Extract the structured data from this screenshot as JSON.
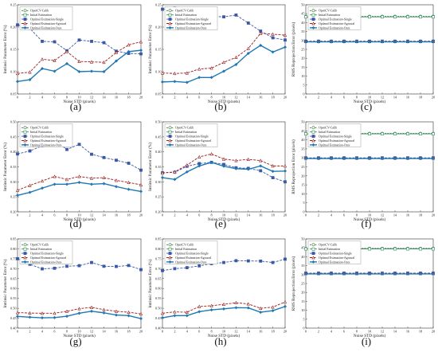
{
  "legend_entries": [
    "OpenCV-Calib",
    "Initial Estimation",
    "Optimal Estimation-Single",
    "Optimal Estimation-Agrawal",
    "Optimal Estimation-Ours"
  ],
  "series_colors": {
    "OpenCV-Calib": "#3a7d3a",
    "Initial Estimation": "#2e8b57",
    "Optimal Estimation-Single": "#3a58a8",
    "Optimal Estimation-Agrawal": "#9b1c1c",
    "Optimal Estimation-Ours": "#1f78b4"
  },
  "chart_data": [
    {
      "panel": "(a)",
      "type": "line",
      "xlabel": "Noise STD (pixels)",
      "ylabel": "Intrinsic Parameter Error (%)",
      "x": [
        0,
        2,
        4,
        6,
        8,
        10,
        12,
        14,
        16,
        18,
        20
      ],
      "ylim": [
        0.05,
        0.25
      ],
      "yticks": [
        0.05,
        0.1,
        0.15,
        0.2,
        0.25
      ],
      "yticklabels": [
        "0.05",
        "0.10",
        "0.15",
        "0.20",
        "0.25"
      ],
      "series": [
        {
          "name": "Optimal Estimation-Single",
          "values": [
            0.205,
            0.197,
            0.168,
            0.167,
            0.147,
            0.171,
            0.168,
            0.165,
            0.146,
            0.141,
            0.14
          ]
        },
        {
          "name": "Optimal Estimation-Agrawal",
          "values": [
            0.096,
            0.099,
            0.128,
            0.125,
            0.145,
            0.123,
            0.122,
            0.121,
            0.143,
            0.16,
            0.167
          ]
        },
        {
          "name": "Optimal Estimation-Ours",
          "values": [
            0.078,
            0.082,
            0.107,
            0.101,
            0.118,
            0.1,
            0.101,
            0.1,
            0.124,
            0.145,
            0.148
          ]
        }
      ]
    },
    {
      "panel": "(b)",
      "type": "line",
      "xlabel": "Noise STD (pixels)",
      "ylabel": "Intrinsic Parameter Error (%)",
      "x": [
        0,
        2,
        4,
        6,
        8,
        10,
        12,
        14,
        16,
        18,
        20
      ],
      "ylim": [
        0.05,
        0.25
      ],
      "yticks": [
        0.05,
        0.1,
        0.15,
        0.2,
        0.25
      ],
      "yticklabels": [
        "0.05",
        "0.10",
        "0.15",
        "0.20",
        "0.25"
      ],
      "series": [
        {
          "name": "Optimal Estimation-Single",
          "values": [
            0.24,
            0.243,
            0.236,
            0.229,
            0.224,
            0.223,
            0.227,
            0.209,
            0.191,
            0.176,
            0.171
          ]
        },
        {
          "name": "Optimal Estimation-Agrawal",
          "values": [
            0.097,
            0.096,
            0.097,
            0.106,
            0.108,
            0.121,
            0.132,
            0.152,
            0.186,
            0.184,
            0.182
          ]
        },
        {
          "name": "Optimal Estimation-Ours",
          "values": [
            0.077,
            0.078,
            0.076,
            0.087,
            0.087,
            0.101,
            0.116,
            0.141,
            0.159,
            0.144,
            0.155
          ]
        }
      ]
    },
    {
      "panel": "(c)",
      "type": "line",
      "xlabel": "Noise STD (pixels)",
      "ylabel": "RMS Reprojection Error (pixels)",
      "x": [
        0,
        2,
        4,
        6,
        8,
        10,
        12,
        14,
        16,
        18,
        20
      ],
      "ylim": [
        0,
        50
      ],
      "yticks": [
        0,
        5,
        10,
        15,
        20,
        25,
        30,
        35,
        40,
        45,
        50
      ],
      "yticklabels": [
        "0",
        "5",
        "10",
        "15",
        "20",
        "25",
        "30",
        "35",
        "40",
        "45",
        "50"
      ],
      "series": [
        {
          "name": "OpenCV-Calib",
          "values": [
            43.5,
            43.5,
            43.5,
            43.5,
            43.5,
            43.5,
            43.5,
            43.5,
            43.5,
            43.5,
            43.5
          ]
        },
        {
          "name": "Initial Estimation",
          "values": [
            43.2,
            43.2,
            43.2,
            43.2,
            43.2,
            43.2,
            43.2,
            43.2,
            43.2,
            43.2,
            43.2
          ]
        },
        {
          "name": "Optimal Estimation-Single",
          "values": [
            29.6,
            29.6,
            29.6,
            29.6,
            29.6,
            29.6,
            29.6,
            29.6,
            29.6,
            29.6,
            29.6
          ]
        },
        {
          "name": "Optimal Estimation-Agrawal",
          "values": [
            29.4,
            29.4,
            29.4,
            29.4,
            29.4,
            29.4,
            29.4,
            29.4,
            29.4,
            29.4,
            29.4
          ]
        },
        {
          "name": "Optimal Estimation-Ours",
          "values": [
            29.2,
            29.2,
            29.2,
            29.2,
            29.2,
            29.2,
            29.2,
            29.2,
            29.2,
            29.2,
            29.2
          ]
        }
      ]
    },
    {
      "panel": "(d)",
      "type": "line",
      "xlabel": "Noise STD (pixels)",
      "ylabel": "Intrinsic Parameter Error (%)",
      "x": [
        0,
        2,
        4,
        6,
        8,
        10,
        12,
        14,
        16,
        18,
        20
      ],
      "ylim": [
        0.2,
        0.5
      ],
      "yticks": [
        0.2,
        0.25,
        0.3,
        0.35,
        0.4,
        0.45,
        0.5
      ],
      "yticklabels": [
        "0.20",
        "0.25",
        "0.30",
        "0.35",
        "0.40",
        "0.45",
        "0.50"
      ],
      "series": [
        {
          "name": "Optimal Estimation-Single",
          "values": [
            0.393,
            0.403,
            0.42,
            0.438,
            0.408,
            0.425,
            0.392,
            0.381,
            0.372,
            0.362,
            0.339
          ]
        },
        {
          "name": "Optimal Estimation-Agrawal",
          "values": [
            0.272,
            0.288,
            0.303,
            0.318,
            0.308,
            0.318,
            0.312,
            0.314,
            0.305,
            0.298,
            0.29
          ]
        },
        {
          "name": "Optimal Estimation-Ours",
          "values": [
            0.255,
            0.265,
            0.279,
            0.292,
            0.292,
            0.298,
            0.292,
            0.294,
            0.284,
            0.275,
            0.268
          ]
        }
      ]
    },
    {
      "panel": "(e)",
      "type": "line",
      "xlabel": "Noise STD (pixels)",
      "ylabel": "Intrinsic Parameter Error (%)",
      "x": [
        0,
        2,
        4,
        6,
        8,
        10,
        12,
        14,
        16,
        18,
        20
      ],
      "ylim": [
        0.2,
        0.5
      ],
      "yticks": [
        0.2,
        0.25,
        0.3,
        0.35,
        0.4,
        0.45,
        0.5
      ],
      "yticklabels": [
        "0.20",
        "0.25",
        "0.30",
        "0.35",
        "0.40",
        "0.45",
        "0.50"
      ],
      "series": [
        {
          "name": "Optimal Estimation-Single",
          "values": [
            0.33,
            0.332,
            0.352,
            0.361,
            0.365,
            0.358,
            0.347,
            0.345,
            0.337,
            0.314,
            0.3
          ]
        },
        {
          "name": "Optimal Estimation-Agrawal",
          "values": [
            0.33,
            0.333,
            0.356,
            0.383,
            0.393,
            0.376,
            0.371,
            0.375,
            0.371,
            0.353,
            0.353
          ]
        },
        {
          "name": "Optimal Estimation-Ours",
          "values": [
            0.314,
            0.308,
            0.333,
            0.353,
            0.365,
            0.352,
            0.344,
            0.342,
            0.353,
            0.335,
            0.336
          ]
        }
      ]
    },
    {
      "panel": "(f)",
      "type": "line",
      "xlabel": "Noise STD (pixels)",
      "ylabel": "RMS Reprojection Error (pixels)",
      "x": [
        0,
        2,
        4,
        6,
        8,
        10,
        12,
        14,
        16,
        18,
        20
      ],
      "ylim": [
        0,
        50
      ],
      "yticks": [
        0,
        5,
        10,
        15,
        20,
        25,
        30,
        35,
        40,
        45,
        50
      ],
      "yticklabels": [
        "0",
        "5",
        "10",
        "15",
        "20",
        "25",
        "30",
        "35",
        "40",
        "45",
        "50"
      ],
      "series": [
        {
          "name": "OpenCV-Calib",
          "values": [
            43.6,
            43.6,
            43.6,
            43.6,
            43.6,
            43.6,
            43.6,
            43.6,
            43.6,
            43.6,
            43.6
          ]
        },
        {
          "name": "Initial Estimation",
          "values": [
            43.3,
            43.3,
            43.3,
            43.3,
            43.3,
            43.3,
            43.3,
            43.3,
            43.3,
            43.3,
            43.3
          ]
        },
        {
          "name": "Optimal Estimation-Single",
          "values": [
            30.0,
            30.0,
            30.0,
            30.0,
            30.0,
            30.0,
            30.0,
            30.0,
            30.0,
            30.0,
            30.0
          ]
        },
        {
          "name": "Optimal Estimation-Agrawal",
          "values": [
            29.8,
            29.8,
            29.8,
            29.8,
            29.8,
            29.8,
            29.8,
            29.8,
            29.8,
            29.8,
            29.8
          ]
        },
        {
          "name": "Optimal Estimation-Ours",
          "values": [
            29.6,
            29.6,
            29.6,
            29.6,
            29.6,
            29.6,
            29.6,
            29.6,
            29.6,
            29.6,
            29.6
          ]
        }
      ]
    },
    {
      "panel": "(g)",
      "type": "line",
      "xlabel": "Noise STD (pixels)",
      "ylabel": "Intrinsic Parameter Error (%)",
      "x": [
        0,
        2,
        4,
        6,
        8,
        10,
        12,
        14,
        16,
        18,
        20
      ],
      "ylim": [
        0.4,
        0.85
      ],
      "yticks": [
        0.4,
        0.45,
        0.5,
        0.55,
        0.6,
        0.65,
        0.7,
        0.75,
        0.8,
        0.85
      ],
      "yticklabels": [
        "0.40",
        "0.45",
        "0.50",
        "0.55",
        "0.60",
        "0.65",
        "0.70",
        "0.75",
        "0.80",
        "0.85"
      ],
      "series": [
        {
          "name": "Optimal Estimation-Single",
          "values": [
            0.75,
            0.722,
            0.699,
            0.702,
            0.712,
            0.715,
            0.731,
            0.712,
            0.711,
            0.716,
            0.695
          ]
        },
        {
          "name": "Optimal Estimation-Agrawal",
          "values": [
            0.478,
            0.476,
            0.475,
            0.475,
            0.485,
            0.498,
            0.505,
            0.493,
            0.485,
            0.48,
            0.472
          ]
        },
        {
          "name": "Optimal Estimation-Ours",
          "values": [
            0.459,
            0.455,
            0.452,
            0.453,
            0.46,
            0.475,
            0.485,
            0.477,
            0.466,
            0.463,
            0.448
          ]
        }
      ]
    },
    {
      "panel": "(h)",
      "type": "line",
      "xlabel": "Noise STD (pixels)",
      "ylabel": "Intrinsic Parameter Error (%)",
      "x": [
        0,
        2,
        4,
        6,
        8,
        10,
        12,
        14,
        16,
        18,
        20
      ],
      "ylim": [
        0.4,
        0.85
      ],
      "yticks": [
        0.4,
        0.45,
        0.5,
        0.55,
        0.6,
        0.65,
        0.7,
        0.75,
        0.8,
        0.85
      ],
      "yticklabels": [
        "0.40",
        "0.45",
        "0.50",
        "0.55",
        "0.60",
        "0.65",
        "0.70",
        "0.75",
        "0.80",
        "0.85"
      ],
      "series": [
        {
          "name": "Optimal Estimation-Single",
          "values": [
            0.69,
            0.7,
            0.705,
            0.714,
            0.725,
            0.731,
            0.74,
            0.739,
            0.738,
            0.731,
            0.748
          ]
        },
        {
          "name": "Optimal Estimation-Agrawal",
          "values": [
            0.475,
            0.482,
            0.48,
            0.509,
            0.513,
            0.52,
            0.528,
            0.522,
            0.5,
            0.506,
            0.532
          ]
        },
        {
          "name": "Optimal Estimation-Ours",
          "values": [
            0.452,
            0.463,
            0.463,
            0.483,
            0.492,
            0.497,
            0.503,
            0.502,
            0.48,
            0.488,
            0.509
          ]
        }
      ]
    },
    {
      "panel": "(i)",
      "type": "line",
      "xlabel": "Noise STD (pixels)",
      "ylabel": "RMS Reprojection Error (pixels)",
      "x": [
        0,
        2,
        4,
        6,
        8,
        10,
        12,
        14,
        16,
        18,
        20
      ],
      "ylim": [
        0,
        50
      ],
      "yticks": [
        0,
        5,
        10,
        15,
        20,
        25,
        30,
        35,
        40,
        45,
        50
      ],
      "yticklabels": [
        "0",
        "5",
        "10",
        "15",
        "20",
        "25",
        "30",
        "35",
        "40",
        "45",
        "50"
      ],
      "series": [
        {
          "name": "OpenCV-Calib",
          "values": [
            44.7,
            44.7,
            44.7,
            44.7,
            44.7,
            44.7,
            44.7,
            44.7,
            44.7,
            44.7,
            44.7
          ]
        },
        {
          "name": "Initial Estimation",
          "values": [
            44.4,
            44.4,
            44.4,
            44.4,
            44.4,
            44.4,
            44.4,
            44.4,
            44.4,
            44.4,
            44.4
          ]
        },
        {
          "name": "Optimal Estimation-Single",
          "values": [
            30.8,
            30.8,
            30.8,
            30.8,
            30.8,
            30.8,
            30.8,
            30.8,
            30.8,
            30.8,
            30.8
          ]
        },
        {
          "name": "Optimal Estimation-Agrawal",
          "values": [
            30.6,
            30.6,
            30.6,
            30.6,
            30.6,
            30.6,
            30.6,
            30.6,
            30.6,
            30.6,
            30.6
          ]
        },
        {
          "name": "Optimal Estimation-Ours",
          "values": [
            30.4,
            30.4,
            30.4,
            30.4,
            30.4,
            30.4,
            30.4,
            30.4,
            30.4,
            30.4,
            30.4
          ]
        }
      ]
    }
  ]
}
